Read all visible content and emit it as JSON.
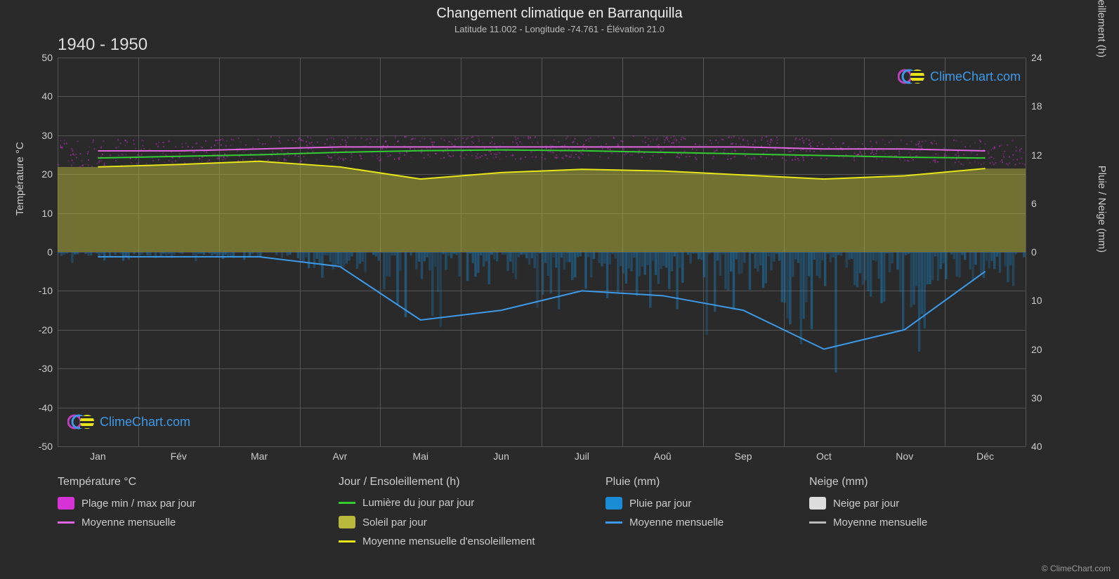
{
  "title": "Changement climatique en Barranquilla",
  "subtitle": "Latitude 11.002 - Longitude -74.761 - Élévation 21.0",
  "year_range": "1940 - 1950",
  "copyright": "© ClimeChart.com",
  "watermark_text": "ClimeChart.com",
  "watermark_color": "#3d9ae8",
  "background_color": "#2a2a2a",
  "grid_color": "#555555",
  "text_color": "#cccccc",
  "plot": {
    "left_axis": {
      "title": "Température °C",
      "min": -50,
      "max": 50,
      "ticks": [
        -50,
        -40,
        -30,
        -20,
        -10,
        0,
        10,
        20,
        30,
        40,
        50
      ]
    },
    "right_axis_top": {
      "title": "Jour / Ensoleillement (h)",
      "min": 0,
      "max": 24,
      "ticks": [
        0,
        6,
        12,
        18,
        24
      ]
    },
    "right_axis_bottom": {
      "title": "Pluie / Neige (mm)",
      "min": 0,
      "max": 40,
      "ticks": [
        0,
        10,
        20,
        30,
        40
      ]
    },
    "months": [
      "Jan",
      "Fév",
      "Mar",
      "Avr",
      "Mai",
      "Jun",
      "Juil",
      "Aoû",
      "Sep",
      "Oct",
      "Nov",
      "Déc"
    ]
  },
  "series": {
    "temp_range_band": {
      "type": "scatter_band",
      "color": "#d633d6",
      "opacity": 0.55,
      "min_values": [
        22,
        22,
        23,
        23.5,
        24,
        24,
        24,
        24,
        24,
        23.5,
        23,
        22.5
      ],
      "max_values": [
        29,
        29,
        30,
        30,
        30,
        30,
        30,
        30,
        30,
        29.5,
        29,
        29
      ]
    },
    "temp_monthly_line": {
      "type": "line",
      "color": "#e066e0",
      "width": 2,
      "values": [
        26,
        26,
        26.5,
        27,
        27,
        27,
        27,
        27,
        27,
        26.5,
        26.5,
        26
      ]
    },
    "daylight_line": {
      "type": "line",
      "color": "#33cc33",
      "width": 2,
      "values": [
        11.6,
        11.8,
        12.0,
        12.3,
        12.5,
        12.6,
        12.5,
        12.3,
        12.1,
        11.9,
        11.7,
        11.6
      ]
    },
    "sun_percentage_band": {
      "type": "area_from_zero",
      "color": "#b8b83d",
      "opacity": 0.5,
      "values": [
        10.5,
        10.8,
        11.2,
        10.5,
        9.0,
        9.8,
        10.2,
        10.0,
        9.5,
        9.0,
        9.4,
        10.3
      ]
    },
    "sun_monthly_line": {
      "type": "line",
      "color": "#e6e619",
      "width": 2,
      "values": [
        10.5,
        10.8,
        11.2,
        10.5,
        9.0,
        9.8,
        10.2,
        10.0,
        9.5,
        9.0,
        9.4,
        10.3
      ]
    },
    "rain_daily_bars": {
      "type": "bars_down",
      "color": "#1a8cd6",
      "opacity": 0.45,
      "max_values": [
        3,
        2,
        3,
        8,
        20,
        18,
        14,
        16,
        20,
        28,
        22,
        10
      ]
    },
    "rain_monthly_line": {
      "type": "line",
      "color": "#3d9ae8",
      "width": 2,
      "values": [
        1,
        1,
        1,
        3,
        14,
        12,
        8,
        9,
        12,
        20,
        16,
        4
      ]
    }
  },
  "legend": {
    "columns": [
      {
        "title": "Température °C",
        "items": [
          {
            "type": "swatch",
            "color": "#d633d6",
            "label": "Plage min / max par jour"
          },
          {
            "type": "line",
            "color": "#e066e0",
            "label": "Moyenne mensuelle"
          }
        ]
      },
      {
        "title": "Jour / Ensoleillement (h)",
        "items": [
          {
            "type": "line",
            "color": "#33cc33",
            "label": "Lumière du jour par jour"
          },
          {
            "type": "swatch",
            "color": "#b8b83d",
            "label": "Soleil par jour"
          },
          {
            "type": "line",
            "color": "#e6e619",
            "label": "Moyenne mensuelle d'ensoleillement"
          }
        ]
      },
      {
        "title": "Pluie (mm)",
        "items": [
          {
            "type": "swatch",
            "color": "#1a8cd6",
            "label": "Pluie par jour"
          },
          {
            "type": "line",
            "color": "#3d9ae8",
            "label": "Moyenne mensuelle"
          }
        ]
      },
      {
        "title": "Neige (mm)",
        "items": [
          {
            "type": "swatch",
            "color": "#dddddd",
            "label": "Neige par jour"
          },
          {
            "type": "line",
            "color": "#bbbbbb",
            "label": "Moyenne mensuelle"
          }
        ]
      }
    ]
  }
}
